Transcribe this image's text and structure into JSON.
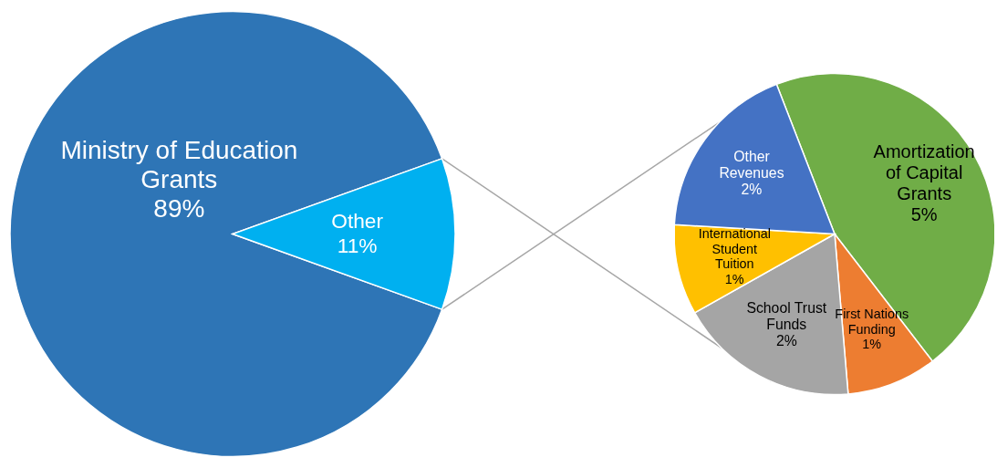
{
  "chart_data": [
    {
      "type": "pie",
      "categories": [
        "Ministry of Education Grants",
        "Other"
      ],
      "values": [
        89,
        11
      ],
      "colors": [
        "#2e75b6",
        "#00b0f0"
      ],
      "value_labels": [
        "89%",
        "11%"
      ]
    },
    {
      "type": "pie",
      "categories": [
        "Amortization of Capital Grants",
        "First Nations Funding",
        "School Trust Funds",
        "International Student Tuition",
        "Other Revenues"
      ],
      "values": [
        5,
        1,
        2,
        1,
        2
      ],
      "colors": [
        "#70ad47",
        "#ed7d31",
        "#a5a5a5",
        "#ffc000",
        "#4472c4"
      ],
      "value_labels": [
        "5%",
        "1%",
        "2%",
        "1%",
        "2%"
      ]
    }
  ]
}
